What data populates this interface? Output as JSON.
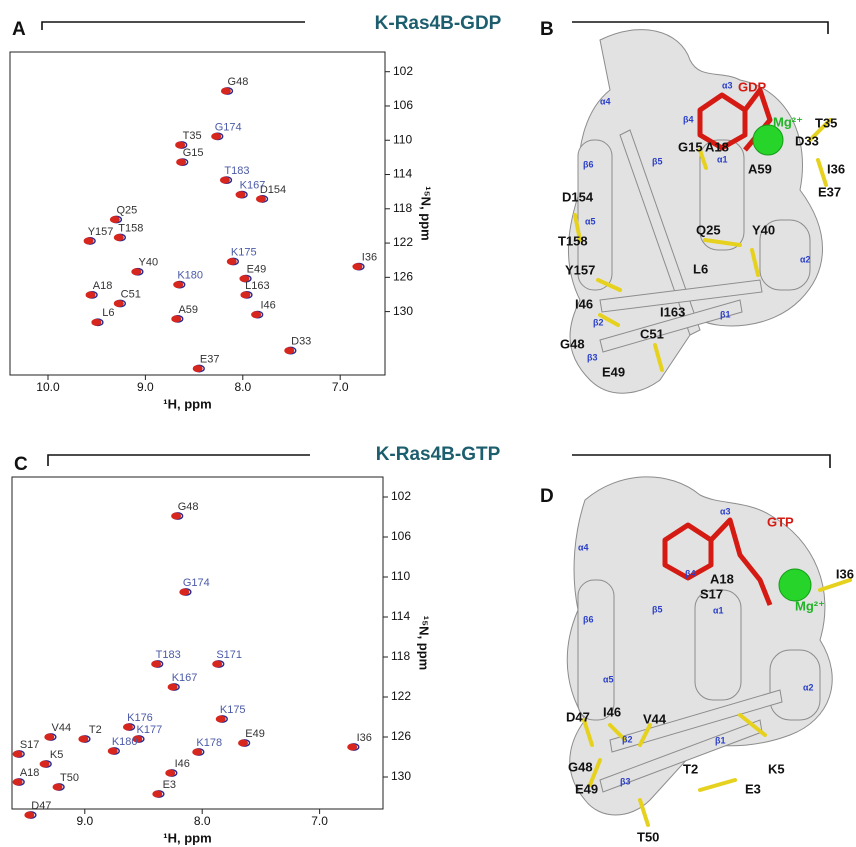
{
  "titles": {
    "gdp": "K-Ras4B-GDP",
    "gtp": "K-Ras4B-GTP"
  },
  "spectra": [
    {
      "label": "A",
      "x_label": "¹H, ppm",
      "y_label": "¹⁵N, ppm",
      "xlim": [
        10.39,
        6.54
      ],
      "ylim": [
        99.7,
        137.4
      ],
      "xticks": [
        {
          "value": 10,
          "label": "10.0"
        },
        {
          "value": 9,
          "label": "9.0"
        },
        {
          "value": 8,
          "label": "8.0"
        },
        {
          "value": 7,
          "label": "7.0"
        }
      ],
      "yticks": [
        102,
        106,
        110,
        114,
        118,
        122,
        126,
        130
      ],
      "series_colors": [
        "#d7261e",
        "#2c2a8c"
      ],
      "peaks": [
        {
          "text": "G48",
          "x": 8.05,
          "y": 103.2,
          "color": "#333333"
        },
        {
          "text": "T35",
          "x": 8.52,
          "y": 109.5,
          "color": "#333333"
        },
        {
          "text": "G15",
          "x": 8.51,
          "y": 111.5,
          "color": "#333333"
        },
        {
          "text": "G174",
          "x": 8.15,
          "y": 108.5,
          "color": "#4b5aa8"
        },
        {
          "text": "T183",
          "x": 8.06,
          "y": 113.6,
          "color": "#4b5aa8"
        },
        {
          "text": "D154",
          "x": 7.69,
          "y": 115.8,
          "color": "#333333"
        },
        {
          "text": "Q25",
          "x": 9.19,
          "y": 118.2,
          "color": "#333333"
        },
        {
          "text": "K167",
          "x": 7.9,
          "y": 115.3,
          "color": "#4b5aa8"
        },
        {
          "text": "T158",
          "x": 9.15,
          "y": 120.3,
          "color": "#333333"
        },
        {
          "text": "K175",
          "x": 7.99,
          "y": 123.1,
          "color": "#4b5aa8"
        },
        {
          "text": "Y157",
          "x": 9.46,
          "y": 120.7,
          "color": "#333333"
        },
        {
          "text": "Y40",
          "x": 8.97,
          "y": 124.3,
          "color": "#333333"
        },
        {
          "text": "E49",
          "x": 7.86,
          "y": 125.1,
          "color": "#333333"
        },
        {
          "text": "I36",
          "x": 6.7,
          "y": 123.7,
          "color": "#333333"
        },
        {
          "text": "A18",
          "x": 9.44,
          "y": 127.0,
          "color": "#333333"
        },
        {
          "text": "K180",
          "x": 8.54,
          "y": 125.8,
          "color": "#4b5aa8"
        },
        {
          "text": "C51",
          "x": 9.15,
          "y": 128.0,
          "color": "#333333"
        },
        {
          "text": "L163",
          "x": 7.85,
          "y": 127.0,
          "color": "#333333"
        },
        {
          "text": "L6",
          "x": 9.38,
          "y": 130.2,
          "color": "#333333"
        },
        {
          "text": "A59",
          "x": 8.56,
          "y": 129.8,
          "color": "#333333"
        },
        {
          "text": "I46",
          "x": 7.74,
          "y": 129.3,
          "color": "#333333"
        },
        {
          "text": "D33",
          "x": 7.4,
          "y": 133.5,
          "color": "#333333"
        },
        {
          "text": "E37",
          "x": 8.34,
          "y": 135.6,
          "color": "#333333"
        }
      ]
    },
    {
      "label": "C",
      "x_label": "¹H, ppm",
      "y_label": "¹⁵N, ppm",
      "xlim": [
        9.62,
        6.46
      ],
      "ylim": [
        100,
        133.2
      ],
      "xticks": [
        {
          "value": 9,
          "label": "9.0"
        },
        {
          "value": 8,
          "label": "8.0"
        },
        {
          "value": 7,
          "label": "7.0"
        }
      ],
      "yticks": [
        102,
        106,
        110,
        114,
        118,
        122,
        126,
        130
      ],
      "series_colors": [
        "#d7261e",
        "#2c2a8c"
      ],
      "peaks": [
        {
          "text": "G48",
          "x": 8.12,
          "y": 103.0,
          "color": "#333333"
        },
        {
          "text": "G174",
          "x": 8.05,
          "y": 110.6,
          "color": "#4b5aa8"
        },
        {
          "text": "T183",
          "x": 8.29,
          "y": 117.8,
          "color": "#4b5aa8"
        },
        {
          "text": "S171",
          "x": 7.77,
          "y": 117.8,
          "color": "#4b5aa8"
        },
        {
          "text": "K167",
          "x": 8.15,
          "y": 120.1,
          "color": "#4b5aa8"
        },
        {
          "text": "S17",
          "x": 9.47,
          "y": 126.8,
          "color": "#333333"
        },
        {
          "text": "I36",
          "x": 6.62,
          "y": 126.1,
          "color": "#333333"
        },
        {
          "text": "K176",
          "x": 8.53,
          "y": 124.1,
          "color": "#4b5aa8"
        },
        {
          "text": "K175",
          "x": 7.74,
          "y": 123.3,
          "color": "#4b5aa8"
        },
        {
          "text": "V44",
          "x": 9.2,
          "y": 125.1,
          "color": "#333333"
        },
        {
          "text": "T2",
          "x": 8.91,
          "y": 125.3,
          "color": "#333333"
        },
        {
          "text": "K177",
          "x": 8.45,
          "y": 125.3,
          "color": "#4b5aa8"
        },
        {
          "text": "E49",
          "x": 7.55,
          "y": 125.7,
          "color": "#333333"
        },
        {
          "text": "K180",
          "x": 8.66,
          "y": 126.5,
          "color": "#4b5aa8"
        },
        {
          "text": "K178",
          "x": 7.94,
          "y": 126.6,
          "color": "#4b5aa8"
        },
        {
          "text": "K5",
          "x": 9.24,
          "y": 127.8,
          "color": "#333333"
        },
        {
          "text": "I46",
          "x": 8.17,
          "y": 128.7,
          "color": "#333333"
        },
        {
          "text": "A18",
          "x": 9.47,
          "y": 129.6,
          "color": "#333333"
        },
        {
          "text": "T50",
          "x": 9.13,
          "y": 130.1,
          "color": "#333333"
        },
        {
          "text": "E3",
          "x": 8.28,
          "y": 130.8,
          "color": "#333333"
        },
        {
          "text": "D47",
          "x": 9.37,
          "y": 132.9,
          "color": "#333333"
        }
      ]
    }
  ],
  "structures": [
    {
      "label": "B",
      "ligand": "GDP",
      "ion": "Mg²⁺",
      "residues": [
        "T35",
        "D33",
        "G15",
        "A18",
        "A59",
        "I36",
        "E37",
        "D154",
        "Q25",
        "Y40",
        "T158",
        "Y157",
        "L6",
        "I163",
        "I46",
        "C51",
        "G48",
        "E49"
      ],
      "elements": [
        "α3",
        "α4",
        "β4",
        "β5",
        "β6",
        "α1",
        "α5",
        "α2",
        "β2",
        "β1",
        "β3"
      ]
    },
    {
      "label": "D",
      "ligand": "GTP",
      "ion": "Mg²⁺",
      "residues": [
        "I36",
        "A18",
        "S17",
        "D47",
        "I46",
        "V44",
        "K5",
        "G48",
        "T2",
        "E3",
        "E49",
        "T50"
      ],
      "elements": [
        "α3",
        "α4",
        "β4",
        "β5",
        "β6",
        "α1",
        "α5",
        "α2",
        "β2",
        "β1",
        "β3"
      ]
    }
  ]
}
